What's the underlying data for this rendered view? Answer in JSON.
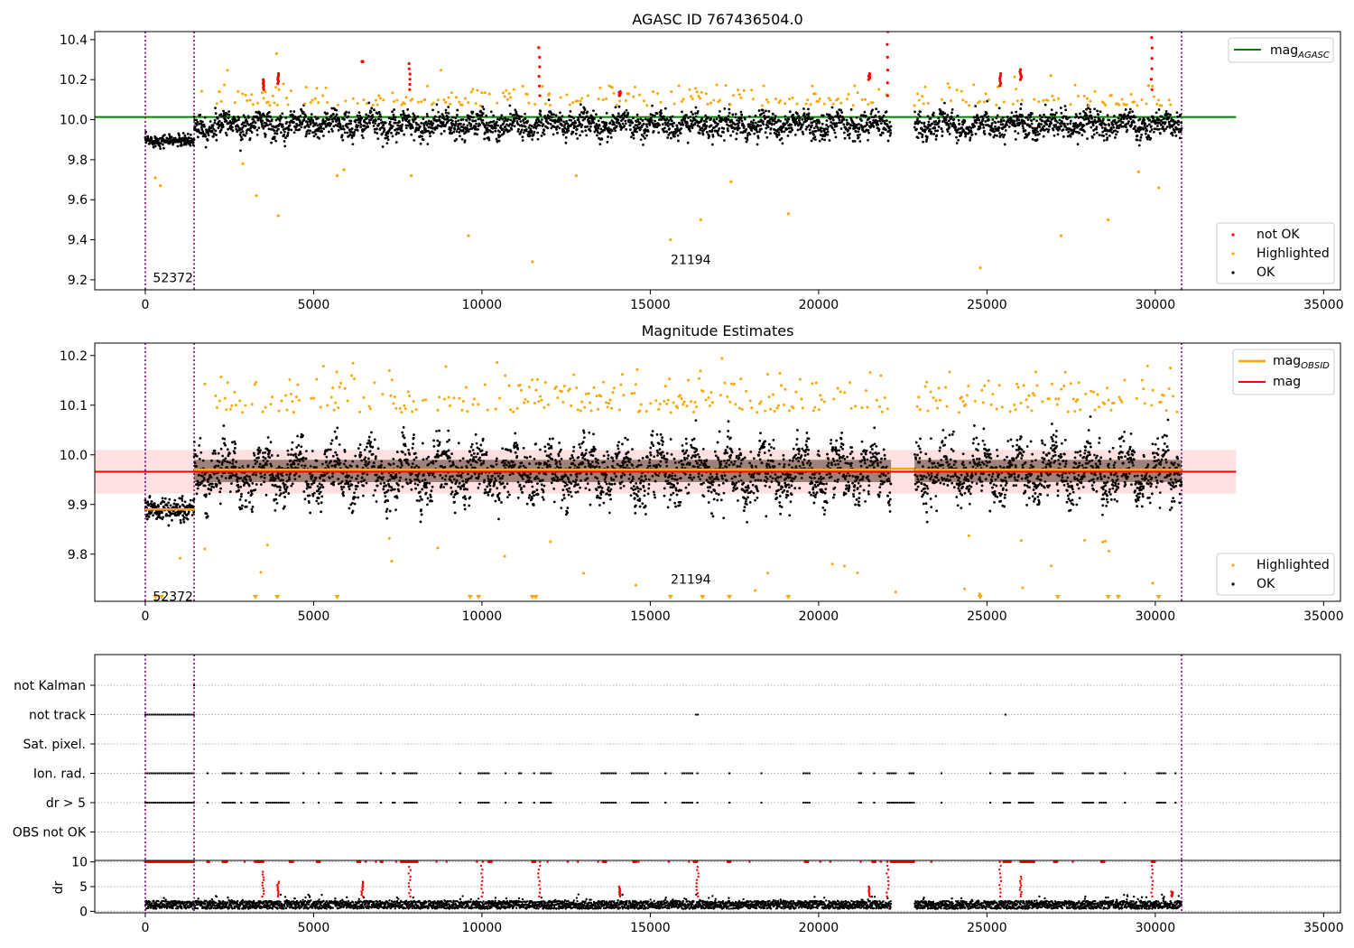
{
  "chart_data": [
    {
      "type": "scatter",
      "title": "AGASC ID 767436504.0",
      "xlim": [
        -1500,
        35500
      ],
      "ylim": [
        9.15,
        10.44
      ],
      "xticks": [
        0,
        5000,
        10000,
        15000,
        20000,
        25000,
        30000,
        35000
      ],
      "yticks": [
        9.2,
        9.4,
        9.6,
        9.8,
        10.0,
        10.2,
        10.4
      ],
      "obs_boundaries": [
        0,
        1450,
        30780
      ],
      "annotations": [
        {
          "text": "52372",
          "x": 120,
          "y": 9.21
        },
        {
          "text": "21194",
          "x": 15500,
          "y": 9.3
        }
      ],
      "hline": {
        "name": "mag_AGASC",
        "value": 10.013,
        "color": "#008000",
        "x_range": [
          -1500,
          32400
        ]
      },
      "series": [
        {
          "name": "not OK",
          "color": "#ff0000"
        },
        {
          "name": "Highlighted",
          "color": "#ffa500"
        },
        {
          "name": "OK",
          "color": "#000000"
        }
      ],
      "ok_segments": [
        {
          "x": [
            0,
            1450
          ],
          "mean": 9.895,
          "spread": 0.025
        },
        {
          "x": [
            1450,
            22150
          ],
          "mean": 9.975,
          "spread": 0.05
        },
        {
          "x": [
            22850,
            30780
          ],
          "mean": 9.975,
          "spread": 0.05
        }
      ],
      "highlighted_points": [
        [
          300,
          9.71
        ],
        [
          450,
          9.67
        ],
        [
          2900,
          9.78
        ],
        [
          3300,
          9.62
        ],
        [
          3950,
          9.52
        ],
        [
          5700,
          9.72
        ],
        [
          5900,
          9.75
        ],
        [
          7900,
          9.72
        ],
        [
          9600,
          9.42
        ],
        [
          11500,
          9.29
        ],
        [
          12800,
          9.72
        ],
        [
          15600,
          9.4
        ],
        [
          16500,
          9.5
        ],
        [
          17400,
          9.69
        ],
        [
          19100,
          9.53
        ],
        [
          24800,
          9.26
        ],
        [
          27200,
          9.42
        ],
        [
          28600,
          9.5
        ],
        [
          29500,
          9.74
        ],
        [
          30100,
          9.66
        ],
        [
          3900,
          10.33
        ],
        [
          12000,
          10.13
        ],
        [
          2200,
          10.14
        ],
        [
          8300,
          10.1
        ],
        [
          26900,
          10.22
        ],
        [
          29800,
          10.17
        ]
      ],
      "not_ok_clusters": [
        {
          "x": 3500,
          "y": [
            10.15,
            10.2
          ]
        },
        {
          "x": 3950,
          "y": [
            10.18,
            10.23
          ]
        },
        {
          "x": 6450,
          "y": [
            10.29,
            10.29
          ]
        },
        {
          "x": 7850,
          "y": [
            10.15,
            10.28
          ]
        },
        {
          "x": 11700,
          "y": [
            10.12,
            10.36
          ]
        },
        {
          "x": 14100,
          "y": [
            10.12,
            10.14
          ]
        },
        {
          "x": 21500,
          "y": [
            10.2,
            10.23
          ]
        },
        {
          "x": 22050,
          "y": [
            10.12,
            10.44
          ]
        },
        {
          "x": 26000,
          "y": [
            10.2,
            10.25
          ]
        },
        {
          "x": 29900,
          "y": [
            10.15,
            10.41
          ]
        },
        {
          "x": 25400,
          "y": [
            10.17,
            10.23
          ]
        }
      ]
    },
    {
      "type": "scatter",
      "title": "Magnitude Estimates",
      "xlim": [
        -1500,
        35500
      ],
      "ylim": [
        9.705,
        10.225
      ],
      "xticks": [
        0,
        5000,
        10000,
        15000,
        20000,
        25000,
        30000,
        35000
      ],
      "yticks": [
        9.8,
        9.9,
        10.0,
        10.1,
        10.2
      ],
      "obs_boundaries": [
        0,
        1450,
        30780
      ],
      "annotations": [
        {
          "text": "52372",
          "x": 120,
          "y": 9.715
        },
        {
          "text": "21194",
          "x": 15500,
          "y": 9.75
        }
      ],
      "mag": {
        "name": "mag",
        "value": 9.966,
        "band": [
          9.922,
          10.01
        ],
        "color": "#ff0000",
        "x_range": [
          -1500,
          32400
        ]
      },
      "mag_obsid": [
        {
          "x": [
            0,
            1450
          ],
          "value": 9.89
        },
        {
          "x": [
            1450,
            22150
          ],
          "value": 9.97
        },
        {
          "x": [
            22150,
            22850
          ],
          "value": 9.972
        },
        {
          "x": [
            22850,
            30780
          ],
          "value": 9.97
        }
      ],
      "legend": [
        {
          "name": "mag_OBSID",
          "color": "#ffa500"
        },
        {
          "name": "mag",
          "color": "#ff0000"
        },
        {
          "name": "Highlighted",
          "color": "#ffa500"
        },
        {
          "name": "OK",
          "color": "#000000"
        }
      ],
      "ok_segments": [
        {
          "x": [
            0,
            1450
          ],
          "mean": 9.89,
          "spread": 0.02
        },
        {
          "x": [
            1450,
            22150
          ],
          "mean": 9.965,
          "spread": 0.045
        },
        {
          "x": [
            22850,
            30780
          ],
          "mean": 9.965,
          "spread": 0.045
        }
      ],
      "offscale_markers_x": [
        300,
        480,
        3270,
        3920,
        5700,
        9650,
        9900,
        11500,
        11600,
        15600,
        16550,
        17350,
        19100,
        24800,
        27100,
        28600,
        28900,
        30100
      ]
    },
    {
      "type": "scatter",
      "title": "",
      "xlim": [
        -1500,
        35500
      ],
      "flags": [
        "not Kalman",
        "not track",
        "Sat. pixel.",
        "Ion. rad.",
        "dr > 5",
        "OBS not OK"
      ],
      "flag_points": {
        "not Kalman": [
          [
            1450,
            1450
          ]
        ],
        "not track": [
          [
            0,
            1450
          ],
          [
            16350,
            16450
          ],
          [
            25550,
            25550
          ]
        ],
        "Sat. pixel.": [],
        "Ion. rad.": [
          [
            0,
            1450
          ],
          [
            1850,
            1850
          ],
          [
            2300,
            2700
          ],
          [
            2850,
            2850
          ],
          [
            3150,
            3350
          ],
          [
            3600,
            4300
          ],
          [
            4700,
            4700
          ],
          [
            5150,
            5150
          ],
          [
            5650,
            5850
          ],
          [
            6300,
            6650
          ],
          [
            7000,
            7000
          ],
          [
            7350,
            7450
          ],
          [
            7700,
            8100
          ],
          [
            9350,
            9350
          ],
          [
            9900,
            10200
          ],
          [
            10700,
            10700
          ],
          [
            11100,
            11200
          ],
          [
            11550,
            11550
          ],
          [
            11750,
            12100
          ],
          [
            13550,
            14000
          ],
          [
            14450,
            14950
          ],
          [
            15450,
            15450
          ],
          [
            15950,
            16250
          ],
          [
            16400,
            16450
          ],
          [
            17350,
            17350
          ],
          [
            18300,
            18300
          ],
          [
            19550,
            19750
          ],
          [
            21200,
            21300
          ],
          [
            21650,
            21700
          ],
          [
            22050,
            22300
          ],
          [
            22700,
            22850
          ],
          [
            23650,
            23650
          ],
          [
            25100,
            25100
          ],
          [
            25500,
            25700
          ],
          [
            25950,
            26400
          ],
          [
            26950,
            27300
          ],
          [
            27850,
            28200
          ],
          [
            28350,
            28550
          ],
          [
            29100,
            29100
          ],
          [
            30050,
            30300
          ],
          [
            30600,
            30600
          ]
        ],
        "dr > 5": [
          [
            0,
            1450
          ],
          [
            1850,
            1850
          ],
          [
            2300,
            2700
          ],
          [
            2850,
            2850
          ],
          [
            3150,
            3350
          ],
          [
            3600,
            4300
          ],
          [
            4700,
            4700
          ],
          [
            5150,
            5150
          ],
          [
            5650,
            5850
          ],
          [
            6300,
            6650
          ],
          [
            7000,
            7000
          ],
          [
            7350,
            7450
          ],
          [
            7700,
            8100
          ],
          [
            9350,
            9350
          ],
          [
            9900,
            10200
          ],
          [
            10700,
            10700
          ],
          [
            11100,
            11200
          ],
          [
            11550,
            11550
          ],
          [
            11750,
            12100
          ],
          [
            13550,
            14000
          ],
          [
            14450,
            14950
          ],
          [
            15450,
            15450
          ],
          [
            15950,
            16250
          ],
          [
            16400,
            16450
          ],
          [
            17350,
            17350
          ],
          [
            18300,
            18300
          ],
          [
            19550,
            19750
          ],
          [
            21200,
            21300
          ],
          [
            21650,
            21700
          ],
          [
            22050,
            22850
          ],
          [
            23650,
            23650
          ],
          [
            25100,
            25100
          ],
          [
            25500,
            25700
          ],
          [
            25950,
            26400
          ],
          [
            26950,
            27300
          ],
          [
            27850,
            28200
          ],
          [
            28350,
            28550
          ],
          [
            29100,
            29100
          ],
          [
            30050,
            30300
          ],
          [
            30600,
            30600
          ]
        ],
        "OBS not OK": []
      },
      "obs_boundaries": [
        0,
        1450,
        30780
      ]
    },
    {
      "type": "scatter",
      "title": "",
      "ylabel": "dr",
      "xlim": [
        -1500,
        35500
      ],
      "ylim": [
        -0.3,
        10.3
      ],
      "yticks": [
        0,
        5,
        10
      ],
      "xticks": [
        0,
        5000,
        10000,
        15000,
        20000,
        25000,
        30000,
        35000
      ],
      "obs_boundaries": [
        0,
        1450,
        30780
      ],
      "gap": [
        22150,
        22850
      ],
      "dr_ok_max": 3,
      "clip_value": 10,
      "red_spikes": [
        [
          3500,
          8
        ],
        [
          3950,
          6
        ],
        [
          6450,
          6
        ],
        [
          7850,
          9
        ],
        [
          10000,
          10
        ],
        [
          11700,
          10
        ],
        [
          14100,
          5
        ],
        [
          16400,
          9
        ],
        [
          21500,
          5
        ],
        [
          22050,
          10
        ],
        [
          25400,
          10
        ],
        [
          26000,
          7
        ],
        [
          29900,
          10
        ],
        [
          30500,
          4
        ]
      ],
      "clip_ranges": [
        [
          0,
          1450
        ],
        [
          1850,
          1900
        ],
        [
          2300,
          2450
        ],
        [
          3300,
          3500
        ],
        [
          4300,
          4400
        ],
        [
          5100,
          5200
        ],
        [
          6300,
          6400
        ],
        [
          7000,
          7050
        ],
        [
          7600,
          8100
        ],
        [
          10200,
          10300
        ],
        [
          11500,
          11600
        ],
        [
          13600,
          13700
        ],
        [
          14500,
          14600
        ],
        [
          16300,
          16400
        ],
        [
          17300,
          17400
        ],
        [
          19600,
          19700
        ],
        [
          21600,
          21700
        ],
        [
          22150,
          22850
        ],
        [
          25500,
          25700
        ],
        [
          26000,
          26400
        ],
        [
          27000,
          27100
        ],
        [
          28400,
          28500
        ],
        [
          29900,
          30000
        ]
      ]
    }
  ]
}
